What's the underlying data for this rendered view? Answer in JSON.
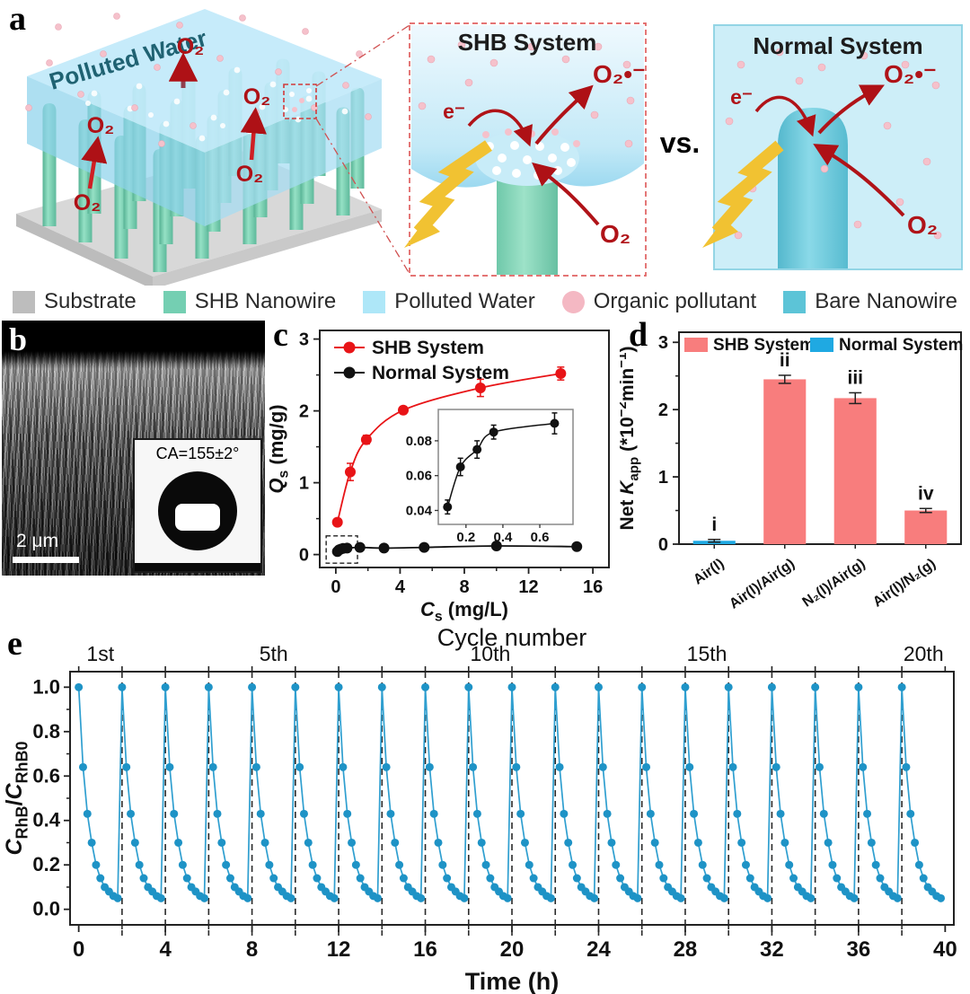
{
  "panel_a": {
    "label": "a",
    "polluted_water": "Polluted Water",
    "o2": "O₂",
    "superoxide": "O₂•⁻",
    "electron": "e⁻",
    "vs": "vs.",
    "shb_title": "SHB System",
    "normal_title": "Normal System",
    "colors": {
      "water": "#b9e6f7",
      "shb_nanowire": "#79d1b5",
      "bare_nanowire": "#5fc6d8",
      "substrate": "#d6d6d6",
      "pollutant": "#f4bcc6",
      "o2_red": "#ae1116",
      "lightning": "#f2c232"
    }
  },
  "legend": {
    "items": [
      {
        "label": "Substrate",
        "color": "#bdbdbd",
        "shape": "square"
      },
      {
        "label": "SHB Nanowire",
        "color": "#74cfb2",
        "shape": "square"
      },
      {
        "label": "Polluted Water",
        "color": "#aee7f8",
        "shape": "square"
      },
      {
        "label": "Organic pollutant",
        "color": "#f4b8c3",
        "shape": "circle"
      },
      {
        "label": "Bare Nanowire",
        "color": "#5cc4d7",
        "shape": "square"
      }
    ]
  },
  "panel_b": {
    "label": "b",
    "scale_bar": "2 μm",
    "contact_angle": "CA=155±2°"
  },
  "chart_data": [
    {
      "id": "c",
      "panel_label": "c",
      "type": "line-scatter",
      "xlabel_parts": [
        {
          "t": "C",
          "s": "i"
        },
        {
          "t": "s",
          "s": "sub"
        },
        {
          "t": " (mg/L)",
          "s": "n"
        }
      ],
      "ylabel_parts": [
        {
          "t": "Q",
          "s": "i"
        },
        {
          "t": "s",
          "s": "sub"
        },
        {
          "t": " (mg/g)",
          "s": "n"
        }
      ],
      "xlim": [
        -1,
        17
      ],
      "ylim": [
        -0.18,
        3.12
      ],
      "xticks": [
        0,
        4,
        8,
        12,
        16
      ],
      "xminor": [
        2,
        6,
        10,
        14
      ],
      "yticks": [
        0,
        1,
        2,
        3
      ],
      "yminor": [
        0.5,
        1.5,
        2.5
      ],
      "series": [
        {
          "name": "SHB System",
          "color": "#e81417",
          "x": [
            0.1,
            0.9,
            1.9,
            4.2,
            9.0,
            14.0
          ],
          "y": [
            0.45,
            1.15,
            1.6,
            2.01,
            2.32,
            2.52
          ],
          "err": [
            0.05,
            0.12,
            0.06,
            0.05,
            0.12,
            0.09
          ]
        },
        {
          "name": "Normal System",
          "color": "#111111",
          "x": [
            0.1,
            0.2,
            0.3,
            0.45,
            0.7,
            1.5,
            3.0,
            5.5,
            10.0,
            15.0
          ],
          "y": [
            0.042,
            0.065,
            0.075,
            0.085,
            0.09,
            0.1,
            0.09,
            0.1,
            0.12,
            0.11
          ],
          "err": [
            0,
            0,
            0,
            0,
            0,
            0,
            0,
            0,
            0,
            0
          ]
        }
      ],
      "dash_box": {
        "x0": -0.6,
        "x1": 1.35,
        "y0": -0.12,
        "y1": 0.26
      },
      "inset": {
        "color": "#111111",
        "xlim": [
          0.05,
          0.78
        ],
        "ylim": [
          0.032,
          0.098
        ],
        "xticks": [
          0.2,
          0.4,
          0.6
        ],
        "yticks": [
          0.04,
          0.06,
          0.08
        ],
        "x": [
          0.1,
          0.17,
          0.26,
          0.35,
          0.68
        ],
        "y": [
          0.042,
          0.065,
          0.075,
          0.085,
          0.09
        ],
        "err": [
          0.004,
          0.005,
          0.005,
          0.004,
          0.006
        ]
      }
    },
    {
      "id": "d",
      "panel_label": "d",
      "type": "bar",
      "ylabel_parts": [
        {
          "t": "Net ",
          "s": "n"
        },
        {
          "t": "K",
          "s": "i"
        },
        {
          "t": "app",
          "s": "sub"
        },
        {
          "t": " (*10",
          "s": "n"
        },
        {
          "t": "−2",
          "s": "sup"
        },
        {
          "t": "min",
          "s": "n"
        },
        {
          "t": "−1",
          "s": "sup"
        },
        {
          "t": ")",
          "s": "n"
        }
      ],
      "categories": [
        "Air(l)",
        "Air(l)/Air(g)",
        "N₂(l)/Air(g)",
        "Air(l)/N₂(g)"
      ],
      "values": [
        0.05,
        2.45,
        2.17,
        0.5
      ],
      "errors": [
        0.02,
        0.06,
        0.08,
        0.03
      ],
      "bar_colors": [
        "#1fa9e2",
        "#f87d7d",
        "#f87d7d",
        "#f87d7d"
      ],
      "annotations": [
        "i",
        "ii",
        "iii",
        "iv"
      ],
      "ylim": [
        0,
        3.15
      ],
      "yticks": [
        0,
        1,
        2,
        3
      ],
      "yminor": [
        0.5,
        1.5,
        2.5
      ],
      "legend": [
        {
          "label": "SHB System",
          "color": "#f87d7d"
        },
        {
          "label": "Normal System",
          "color": "#1fa9e2"
        }
      ]
    },
    {
      "id": "e",
      "panel_label": "e",
      "type": "cycles",
      "title": "Cycle number",
      "xlabel": "Time (h)",
      "ylabel_parts": [
        {
          "t": "C",
          "s": "i"
        },
        {
          "t": "RhB",
          "s": "sub"
        },
        {
          "t": "/",
          "s": "n"
        },
        {
          "t": "C",
          "s": "i"
        },
        {
          "t": "RhB0",
          "s": "sub"
        }
      ],
      "xlim": [
        -0.4,
        40.4
      ],
      "ylim": [
        -0.07,
        1.07
      ],
      "xticks": [
        0,
        4,
        8,
        12,
        16,
        20,
        24,
        28,
        32,
        36,
        40
      ],
      "xminor": [
        2,
        6,
        10,
        14,
        18,
        22,
        26,
        30,
        34,
        38
      ],
      "yticks": [
        0.0,
        0.2,
        0.4,
        0.6,
        0.8,
        1.0
      ],
      "yminor": [
        0.1,
        0.3,
        0.5,
        0.7,
        0.9
      ],
      "n_cycles": 20,
      "cycle_period_h": 2,
      "cycle_profile_t": [
        0,
        0.2,
        0.4,
        0.6,
        0.8,
        1.0,
        1.2,
        1.4,
        1.6,
        1.8
      ],
      "cycle_profile_v": [
        1.0,
        0.64,
        0.43,
        0.3,
        0.2,
        0.14,
        0.1,
        0.08,
        0.06,
        0.05
      ],
      "cycle_labels": [
        {
          "text": "1st",
          "t": 1
        },
        {
          "text": "5th",
          "t": 9
        },
        {
          "text": "10th",
          "t": 19
        },
        {
          "text": "15th",
          "t": 29
        },
        {
          "text": "20th",
          "t": 39
        }
      ],
      "line_color": "#2f9fd0",
      "marker_color": "#1e93c6",
      "dash_color": "#2a2a2a"
    }
  ]
}
